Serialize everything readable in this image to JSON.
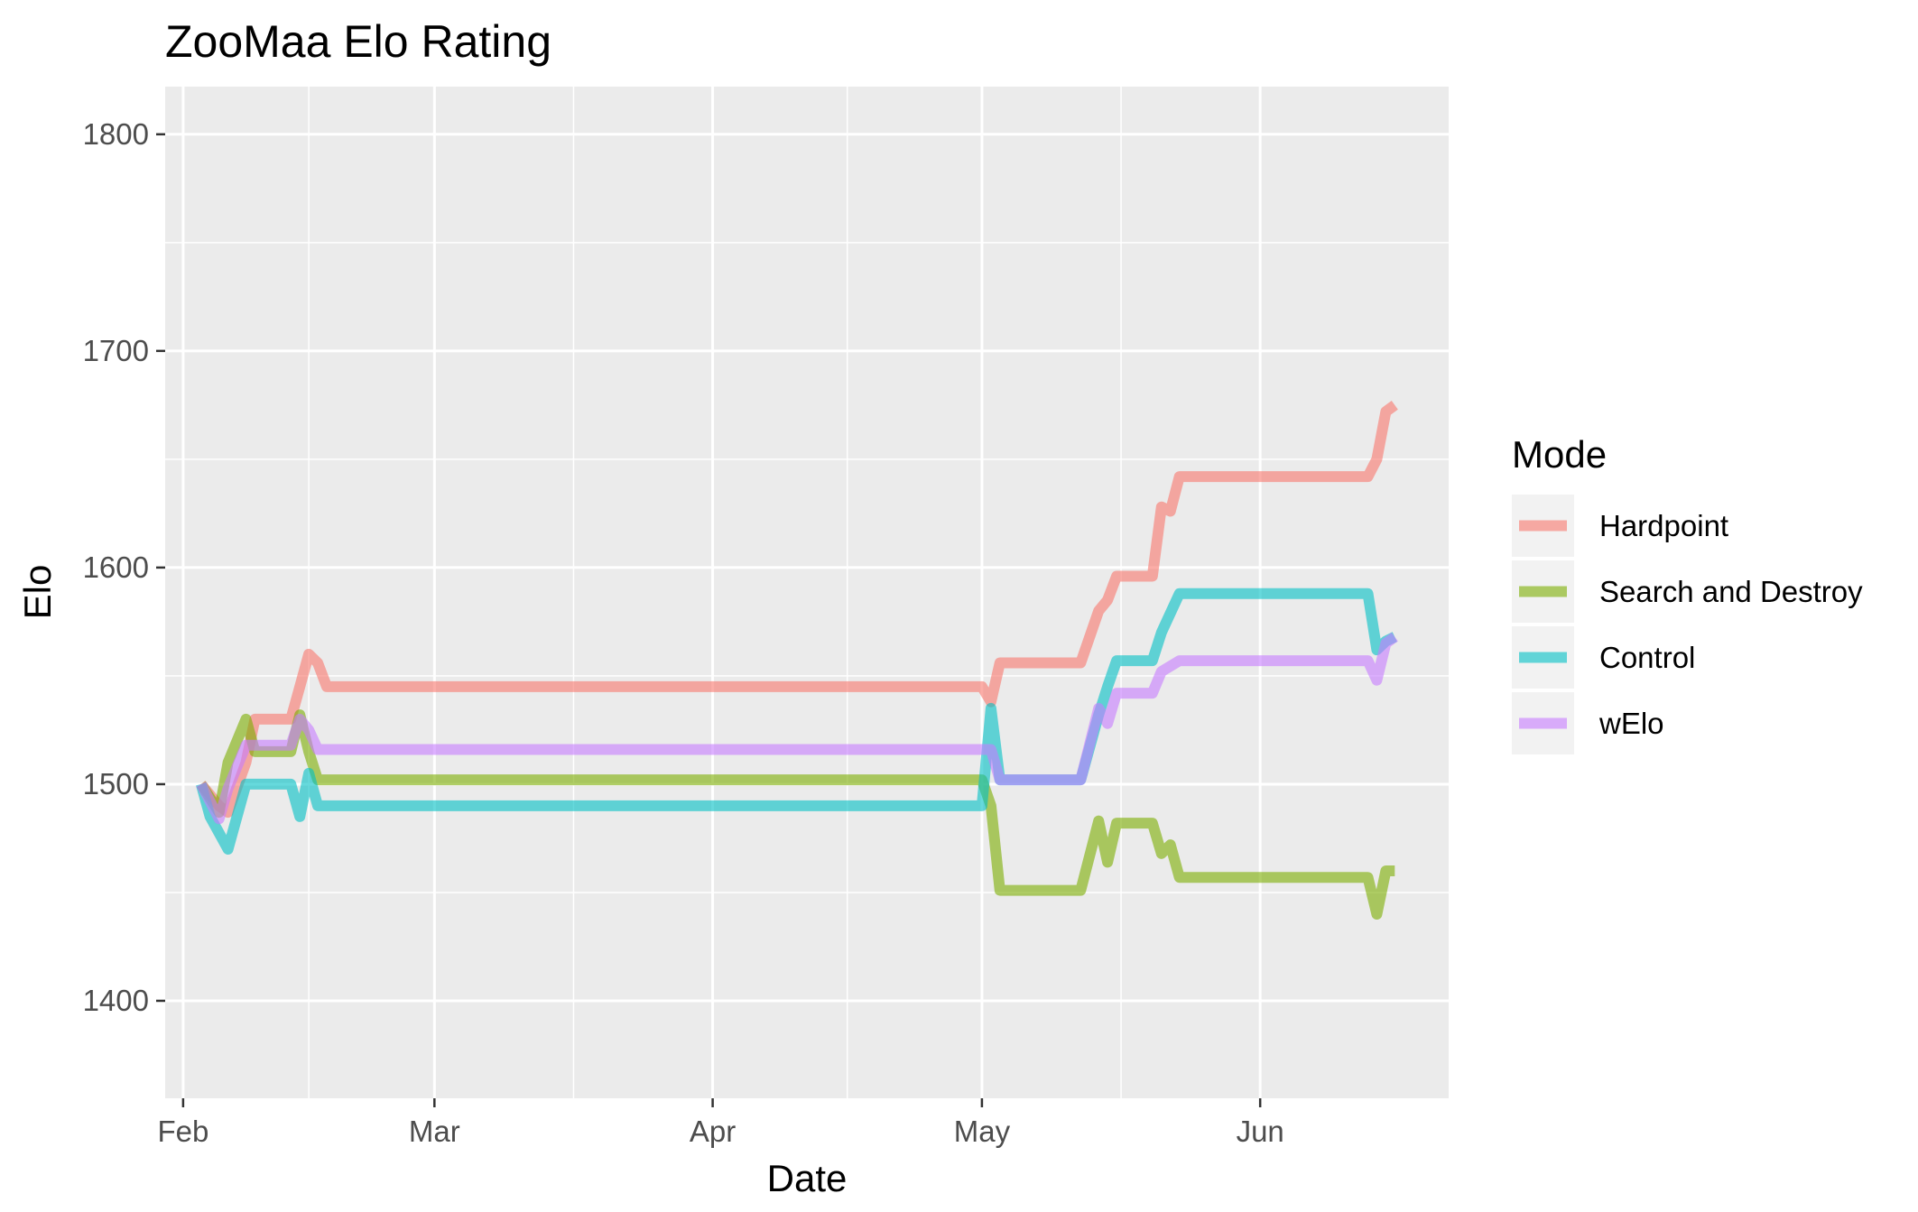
{
  "chart_data": {
    "type": "line",
    "title": "ZooMaa Elo Rating",
    "xlabel": "Date",
    "ylabel": "Elo",
    "x_axis": {
      "type": "date",
      "range": [
        "2019-01-30",
        "2019-06-22"
      ],
      "ticks": [
        {
          "date": "2019-02-01",
          "label": "Feb"
        },
        {
          "date": "2019-03-01",
          "label": "Mar"
        },
        {
          "date": "2019-04-01",
          "label": "Apr"
        },
        {
          "date": "2019-05-01",
          "label": "May"
        },
        {
          "date": "2019-06-01",
          "label": "Jun"
        }
      ]
    },
    "y_axis": {
      "range": [
        1355,
        1822
      ],
      "ticks": [
        1400,
        1500,
        1600,
        1700,
        1800
      ]
    },
    "grid": true,
    "legend": {
      "title": "Mode",
      "position": "right"
    },
    "series": [
      {
        "name": "Hardpoint",
        "color": "#F8766D",
        "points": [
          [
            "2019-02-03",
            1500
          ],
          [
            "2019-02-05",
            1490
          ],
          [
            "2019-02-06",
            1487
          ],
          [
            "2019-02-08",
            1510
          ],
          [
            "2019-02-09",
            1530
          ],
          [
            "2019-02-13",
            1530
          ],
          [
            "2019-02-14",
            1545
          ],
          [
            "2019-02-15",
            1560
          ],
          [
            "2019-02-16",
            1556
          ],
          [
            "2019-02-17",
            1545
          ],
          [
            "2019-02-18",
            1545
          ],
          [
            "2019-05-01",
            1545
          ],
          [
            "2019-05-02",
            1538
          ],
          [
            "2019-05-03",
            1556
          ],
          [
            "2019-05-12",
            1556
          ],
          [
            "2019-05-14",
            1580
          ],
          [
            "2019-05-15",
            1585
          ],
          [
            "2019-05-16",
            1596
          ],
          [
            "2019-05-20",
            1596
          ],
          [
            "2019-05-21",
            1628
          ],
          [
            "2019-05-22",
            1626
          ],
          [
            "2019-05-23",
            1642
          ],
          [
            "2019-06-13",
            1642
          ],
          [
            "2019-06-14",
            1650
          ],
          [
            "2019-06-15",
            1672
          ],
          [
            "2019-06-16",
            1675
          ]
        ]
      },
      {
        "name": "Search and Destroy",
        "color": "#7CAE00",
        "points": [
          [
            "2019-02-03",
            1500
          ],
          [
            "2019-02-05",
            1487
          ],
          [
            "2019-02-06",
            1510
          ],
          [
            "2019-02-08",
            1530
          ],
          [
            "2019-02-09",
            1515
          ],
          [
            "2019-02-13",
            1515
          ],
          [
            "2019-02-14",
            1532
          ],
          [
            "2019-02-15",
            1515
          ],
          [
            "2019-02-16",
            1502
          ],
          [
            "2019-05-01",
            1502
          ],
          [
            "2019-05-02",
            1490
          ],
          [
            "2019-05-03",
            1451
          ],
          [
            "2019-05-12",
            1451
          ],
          [
            "2019-05-14",
            1483
          ],
          [
            "2019-05-15",
            1464
          ],
          [
            "2019-05-16",
            1482
          ],
          [
            "2019-05-20",
            1482
          ],
          [
            "2019-05-21",
            1468
          ],
          [
            "2019-05-22",
            1472
          ],
          [
            "2019-05-23",
            1457
          ],
          [
            "2019-06-13",
            1457
          ],
          [
            "2019-06-14",
            1440
          ],
          [
            "2019-06-15",
            1460
          ],
          [
            "2019-06-16",
            1460
          ]
        ]
      },
      {
        "name": "Control",
        "color": "#00BFC4",
        "points": [
          [
            "2019-02-03",
            1500
          ],
          [
            "2019-02-04",
            1485
          ],
          [
            "2019-02-06",
            1470
          ],
          [
            "2019-02-08",
            1500
          ],
          [
            "2019-02-13",
            1500
          ],
          [
            "2019-02-14",
            1485
          ],
          [
            "2019-02-15",
            1505
          ],
          [
            "2019-02-16",
            1490
          ],
          [
            "2019-05-01",
            1490
          ],
          [
            "2019-05-02",
            1535
          ],
          [
            "2019-05-03",
            1502
          ],
          [
            "2019-05-12",
            1502
          ],
          [
            "2019-05-14",
            1532
          ],
          [
            "2019-05-15",
            1545
          ],
          [
            "2019-05-16",
            1557
          ],
          [
            "2019-05-20",
            1557
          ],
          [
            "2019-05-21",
            1570
          ],
          [
            "2019-05-23",
            1588
          ],
          [
            "2019-06-13",
            1588
          ],
          [
            "2019-06-14",
            1562
          ],
          [
            "2019-06-15",
            1566
          ],
          [
            "2019-06-16",
            1568
          ]
        ]
      },
      {
        "name": "wElo",
        "color": "#C77CFF",
        "points": [
          [
            "2019-02-03",
            1500
          ],
          [
            "2019-02-05",
            1484
          ],
          [
            "2019-02-06",
            1498
          ],
          [
            "2019-02-08",
            1518
          ],
          [
            "2019-02-13",
            1518
          ],
          [
            "2019-02-14",
            1530
          ],
          [
            "2019-02-15",
            1525
          ],
          [
            "2019-02-16",
            1516
          ],
          [
            "2019-05-01",
            1516
          ],
          [
            "2019-05-02",
            1516
          ],
          [
            "2019-05-03",
            1502
          ],
          [
            "2019-05-12",
            1502
          ],
          [
            "2019-05-14",
            1535
          ],
          [
            "2019-05-15",
            1528
          ],
          [
            "2019-05-16",
            1542
          ],
          [
            "2019-05-20",
            1542
          ],
          [
            "2019-05-21",
            1552
          ],
          [
            "2019-05-23",
            1557
          ],
          [
            "2019-06-13",
            1557
          ],
          [
            "2019-06-14",
            1548
          ],
          [
            "2019-06-15",
            1565
          ],
          [
            "2019-06-16",
            1568
          ]
        ]
      }
    ]
  }
}
